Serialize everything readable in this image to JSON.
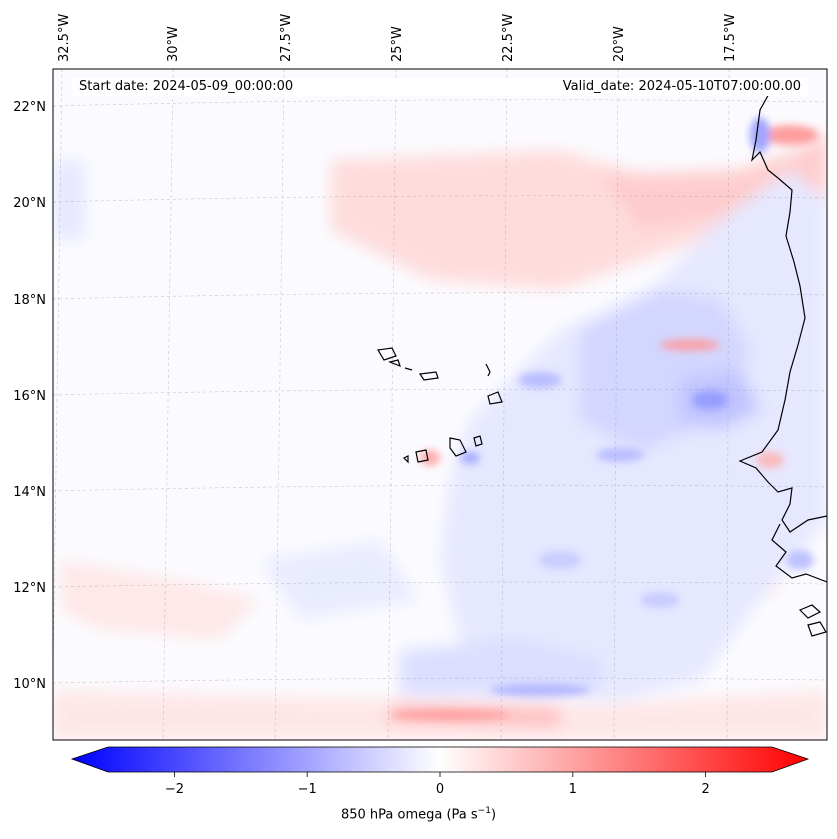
{
  "map": {
    "start_label": "Start date: 2024-05-09_00:00:00",
    "valid_label": "Valid_date: 2024-05-10T07:00:00.00",
    "lon_labels": [
      "32.5°W",
      "30°W",
      "27.5°W",
      "25°W",
      "22.5°W",
      "20°W",
      "17.5°W"
    ],
    "lat_labels": [
      "22°N",
      "20°N",
      "18°N",
      "16°N",
      "14°N",
      "12°N",
      "10°N"
    ],
    "field": "850 hPa omega",
    "units": "Pa s"
  },
  "colorbar": {
    "min": -2.75,
    "max": 2.75,
    "ticks": [
      {
        "value": -2,
        "label": "−2"
      },
      {
        "value": -1,
        "label": "−1"
      },
      {
        "value": 0,
        "label": "0"
      },
      {
        "value": 1,
        "label": "1"
      },
      {
        "value": 2,
        "label": "2"
      }
    ],
    "label_prefix": "850 hPa omega (Pa s",
    "label_exponent": "−1",
    "label_suffix": ")",
    "colors": {
      "negative": "#0000ff",
      "zero": "#ffffff",
      "positive": "#ff0000"
    }
  }
}
